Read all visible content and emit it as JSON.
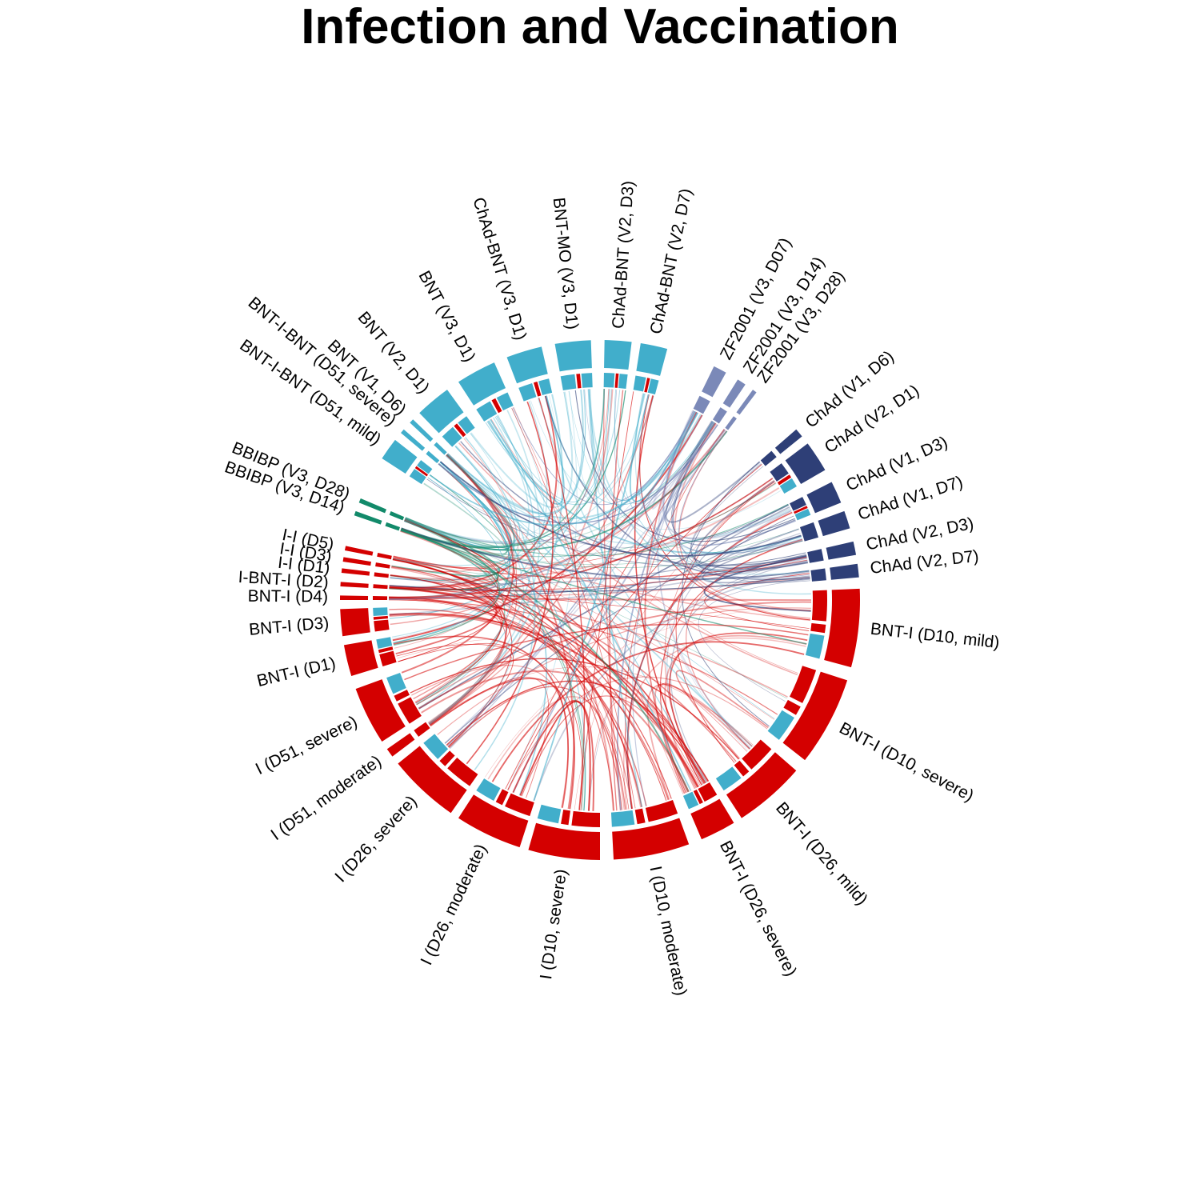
{
  "title": "Infection and Vaccination",
  "colors": {
    "light_blue": "#41aecb",
    "navy": "#2e3f77",
    "slate": "#7b89b8",
    "green": "#128a6a",
    "red": "#d40000"
  },
  "chart_data": {
    "type": "chord",
    "title": "Infection and Vaccination",
    "sectors": [
      {
        "label": "BNT-I (D10, mild)",
        "group": "red"
      },
      {
        "label": "BNT-I (D10, severe)",
        "group": "red"
      },
      {
        "label": "BNT-I (D26, mild)",
        "group": "red"
      },
      {
        "label": "BNT-I (D26, severe)",
        "group": "red"
      },
      {
        "label": "I (D10, moderate)",
        "group": "red"
      },
      {
        "label": "I (D10, severe)",
        "group": "red"
      },
      {
        "label": "I (D26, moderate)",
        "group": "red"
      },
      {
        "label": "I (D26, severe)",
        "group": "red"
      },
      {
        "label": "I (D51, moderate)",
        "group": "red"
      },
      {
        "label": "I (D51, severe)",
        "group": "red"
      },
      {
        "label": "BNT-I (D1)",
        "group": "red"
      },
      {
        "label": "BNT-I (D3)",
        "group": "red"
      },
      {
        "label": "BNT-I (D4)",
        "group": "red"
      },
      {
        "label": "I-BNT-I (D2)",
        "group": "red"
      },
      {
        "label": "I-I (D1)",
        "group": "red"
      },
      {
        "label": "I-I (D3)",
        "group": "red"
      },
      {
        "label": "I-I (D5)",
        "group": "red"
      },
      {
        "label": "BBIBP (V3, D14)",
        "group": "green"
      },
      {
        "label": "BBIBP (V3, D28)",
        "group": "green"
      },
      {
        "label": "BNT-I-BNT (D51, mild)",
        "group": "light_blue"
      },
      {
        "label": "BNT-I-BNT (D51, severe)",
        "group": "light_blue"
      },
      {
        "label": "BNT (V1, D6)",
        "group": "light_blue"
      },
      {
        "label": "BNT (V2, D1)",
        "group": "light_blue"
      },
      {
        "label": "BNT (V3, D1)",
        "group": "light_blue"
      },
      {
        "label": "ChAd-BNT (V3, D1)",
        "group": "light_blue"
      },
      {
        "label": "BNT-MO (V3, D1)",
        "group": "light_blue"
      },
      {
        "label": "ChAd-BNT (V2, D3)",
        "group": "light_blue"
      },
      {
        "label": "ChAd-BNT (V2, D7)",
        "group": "light_blue"
      },
      {
        "label": "ZF2001 (V3, D07)",
        "group": "slate"
      },
      {
        "label": "ZF2001 (V3, D14)",
        "group": "slate"
      },
      {
        "label": "ZF2001 (V3, D28)",
        "group": "slate"
      },
      {
        "label": "ChAd (V1, D6)",
        "group": "navy"
      },
      {
        "label": "ChAd (V2, D1)",
        "group": "navy"
      },
      {
        "label": "ChAd (V1, D3)",
        "group": "navy"
      },
      {
        "label": "ChAd (V1, D7)",
        "group": "navy"
      },
      {
        "label": "ChAd (V2, D3)",
        "group": "navy"
      },
      {
        "label": "ChAd (V2, D7)",
        "group": "navy"
      }
    ]
  }
}
